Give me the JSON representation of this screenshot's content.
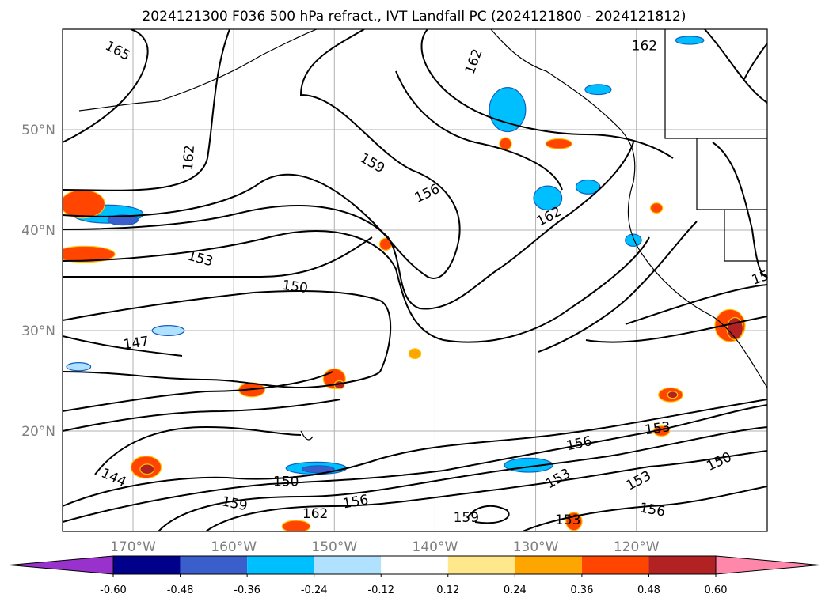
{
  "chart_data": {
    "type": "contour-map",
    "title": "2024121300 F036 500 hPa refract., IVT Landfall PC (2024121800 - 2024121812)",
    "lon_ticks": [
      "170°W",
      "160°W",
      "150°W",
      "140°W",
      "130°W",
      "120°W"
    ],
    "lat_ticks": [
      "50°N",
      "40°N",
      "30°N",
      "20°N"
    ],
    "lon_range": [
      -177,
      -107
    ],
    "lat_range": [
      10,
      60
    ],
    "grid": true,
    "contour_labels": [
      {
        "text": "165",
        "lon": -171.5,
        "lat": 57.9,
        "angle": 28
      },
      {
        "text": "162",
        "lon": -164.5,
        "lat": 47.2,
        "angle": -86
      },
      {
        "text": "159",
        "lon": -146.2,
        "lat": 46.7,
        "angle": 30
      },
      {
        "text": "156",
        "lon": -140.8,
        "lat": 43.7,
        "angle": -25
      },
      {
        "text": "162",
        "lon": -136.2,
        "lat": 56.8,
        "angle": -70
      },
      {
        "text": "162",
        "lon": -119.2,
        "lat": 58.4,
        "angle": 0
      },
      {
        "text": "162",
        "lon": -128.7,
        "lat": 41.4,
        "angle": -28
      },
      {
        "text": "153",
        "lon": -163.3,
        "lat": 37.2,
        "angle": 15
      },
      {
        "text": "150",
        "lon": -153.9,
        "lat": 34.4,
        "angle": 8
      },
      {
        "text": "147",
        "lon": -169.7,
        "lat": 28.8,
        "angle": -8
      },
      {
        "text": "144",
        "lon": -171.9,
        "lat": 15.4,
        "angle": 25
      },
      {
        "text": "150",
        "lon": -154.8,
        "lat": 15.0,
        "angle": 0
      },
      {
        "text": "159",
        "lon": -159.9,
        "lat": 12.8,
        "angle": 12
      },
      {
        "text": "156",
        "lon": -147.9,
        "lat": 13.0,
        "angle": -10
      },
      {
        "text": "162",
        "lon": -151.9,
        "lat": 11.8,
        "angle": 0
      },
      {
        "text": "159",
        "lon": -136.9,
        "lat": 11.4,
        "angle": 0
      },
      {
        "text": "153",
        "lon": -126.8,
        "lat": 11.2,
        "angle": 0
      },
      {
        "text": "156",
        "lon": -125.7,
        "lat": 18.8,
        "angle": -12
      },
      {
        "text": "153",
        "lon": -127.8,
        "lat": 15.3,
        "angle": -30
      },
      {
        "text": "153",
        "lon": -119.8,
        "lat": 15.1,
        "angle": -28
      },
      {
        "text": "153",
        "lon": -117.9,
        "lat": 20.3,
        "angle": -8
      },
      {
        "text": "150",
        "lon": -111.8,
        "lat": 17.0,
        "angle": -25
      },
      {
        "text": "156",
        "lon": -118.4,
        "lat": 12.2,
        "angle": 10
      },
      {
        "text": "15",
        "lon": -107.7,
        "lat": 35.3,
        "angle": -20
      }
    ],
    "colorbar": {
      "ticks": [
        "-0.60",
        "-0.48",
        "-0.36",
        "-0.24",
        "-0.12",
        "0.12",
        "0.24",
        "0.36",
        "0.48",
        "0.60"
      ],
      "colors": [
        "#9932cc",
        "#00008b",
        "#3a5fcd",
        "#00bfff",
        "#b0e2ff",
        "#ffffff",
        "#ffe88c",
        "#ffa500",
        "#ff4500",
        "#b22222",
        "#ff88aa"
      ],
      "extend": "both"
    },
    "filled_regions": [
      {
        "lon": -172.5,
        "lat": 41.6,
        "rx": 3.5,
        "ry": 0.9,
        "value": -0.36
      },
      {
        "lon": -171.0,
        "lat": 41.0,
        "rx": 1.5,
        "ry": 0.5,
        "value": -0.48
      },
      {
        "lon": -132.8,
        "lat": 52.0,
        "rx": 1.8,
        "ry": 2.2,
        "value": -0.36
      },
      {
        "lon": -128.8,
        "lat": 43.2,
        "rx": 1.4,
        "ry": 1.2,
        "value": -0.36
      },
      {
        "lon": -124.8,
        "lat": 44.3,
        "rx": 1.2,
        "ry": 0.7,
        "value": -0.36
      },
      {
        "lon": -123.8,
        "lat": 54.0,
        "rx": 1.3,
        "ry": 0.5,
        "value": -0.36
      },
      {
        "lon": -114.7,
        "lat": 58.9,
        "rx": 1.4,
        "ry": 0.4,
        "value": -0.36
      },
      {
        "lon": -151.8,
        "lat": 16.3,
        "rx": 3.0,
        "ry": 0.6,
        "value": -0.36
      },
      {
        "lon": -151.6,
        "lat": 16.2,
        "rx": 1.6,
        "ry": 0.35,
        "value": -0.48
      },
      {
        "lon": -130.7,
        "lat": 16.6,
        "rx": 2.4,
        "ry": 0.7,
        "value": -0.36
      },
      {
        "lon": -166.5,
        "lat": 30.0,
        "rx": 1.6,
        "ry": 0.5,
        "value": -0.24
      },
      {
        "lon": -175.4,
        "lat": 26.4,
        "rx": 1.2,
        "ry": 0.4,
        "value": -0.24
      },
      {
        "lon": -175.0,
        "lat": 42.6,
        "rx": 2.2,
        "ry": 1.4,
        "value": 0.36
      },
      {
        "lon": -174.8,
        "lat": 37.6,
        "rx": 3.0,
        "ry": 0.8,
        "value": 0.36
      },
      {
        "lon": -150.0,
        "lat": 25.2,
        "rx": 1.1,
        "ry": 1.0,
        "value": 0.36
      },
      {
        "lon": -149.5,
        "lat": 24.6,
        "rx": 0.5,
        "ry": 0.4,
        "value": 0.48
      },
      {
        "lon": -158.2,
        "lat": 24.1,
        "rx": 1.3,
        "ry": 0.7,
        "value": 0.36
      },
      {
        "lon": -110.7,
        "lat": 30.5,
        "rx": 1.5,
        "ry": 1.6,
        "value": 0.36
      },
      {
        "lon": -110.2,
        "lat": 30.2,
        "rx": 0.8,
        "ry": 1.1,
        "value": 0.48
      },
      {
        "lon": -168.7,
        "lat": 16.4,
        "rx": 1.5,
        "ry": 1.1,
        "value": 0.36
      },
      {
        "lon": -168.6,
        "lat": 16.2,
        "rx": 0.7,
        "ry": 0.5,
        "value": 0.48
      },
      {
        "lon": -116.6,
        "lat": 23.6,
        "rx": 1.2,
        "ry": 0.7,
        "value": 0.36
      },
      {
        "lon": -116.4,
        "lat": 23.6,
        "rx": 0.5,
        "ry": 0.35,
        "value": 0.48
      },
      {
        "lon": -127.7,
        "lat": 48.6,
        "rx": 1.3,
        "ry": 0.5,
        "value": 0.36
      },
      {
        "lon": -126.2,
        "lat": 11.0,
        "rx": 0.8,
        "ry": 0.9,
        "value": 0.36
      },
      {
        "lon": -153.8,
        "lat": 10.5,
        "rx": 1.4,
        "ry": 0.6,
        "value": 0.36
      },
      {
        "lon": -144.9,
        "lat": 38.6,
        "rx": 0.6,
        "ry": 0.6,
        "value": 0.36
      },
      {
        "lon": -133.0,
        "lat": 48.6,
        "rx": 0.6,
        "ry": 0.6,
        "value": 0.36
      },
      {
        "lon": -142.0,
        "lat": 27.7,
        "rx": 0.6,
        "ry": 0.5,
        "value": 0.24
      },
      {
        "lon": -117.5,
        "lat": 20.0,
        "rx": 0.8,
        "ry": 0.5,
        "value": 0.36
      },
      {
        "lon": -118.0,
        "lat": 42.2,
        "rx": 0.6,
        "ry": 0.5,
        "value": 0.36
      },
      {
        "lon": -120.3,
        "lat": 39.0,
        "rx": 0.8,
        "ry": 0.6,
        "value": -0.36
      }
    ]
  }
}
